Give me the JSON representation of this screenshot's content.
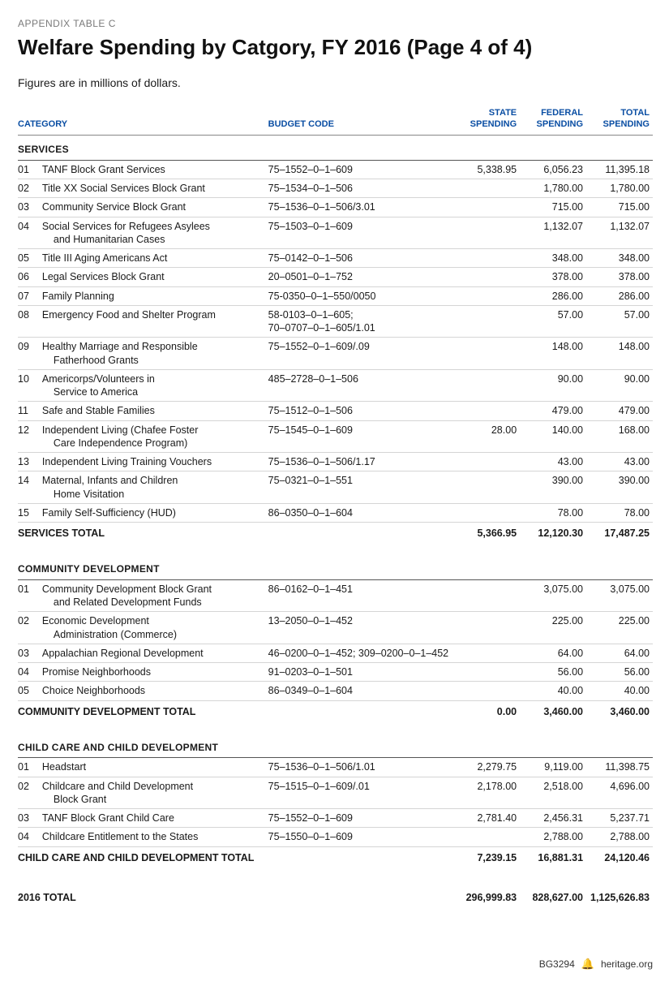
{
  "appendix_label": "APPENDIX TABLE C",
  "title": "Welfare Spending by Catgory, FY 2016 (Page 4 of 4)",
  "subtitle": "Figures are in millions of dollars.",
  "columns": {
    "category": "CATEGORY",
    "budget_code": "BUDGET CODE",
    "state": "STATE SPENDING",
    "federal": "FEDERAL SPENDING",
    "total": "TOTAL SPENDING"
  },
  "sections": [
    {
      "name": "SERVICES",
      "rows": [
        {
          "idx": "01",
          "cat": "TANF Block Grant Services",
          "code": "75–1552–0–1–609",
          "state": "5,338.95",
          "federal": "6,056.23",
          "total": "11,395.18"
        },
        {
          "idx": "02",
          "cat": "Title XX Social Services Block Grant",
          "code": "75–1534–0–1–506",
          "state": "",
          "federal": "1,780.00",
          "total": "1,780.00"
        },
        {
          "idx": "03",
          "cat": "Community Service Block Grant",
          "code": "75–1536–0–1–506/3.01",
          "state": "",
          "federal": "715.00",
          "total": "715.00"
        },
        {
          "idx": "04",
          "cat": "Social Services for Refugees Asylees",
          "cat2": "and Humanitarian Cases",
          "code": "75–1503–0–1–609",
          "state": "",
          "federal": "1,132.07",
          "total": "1,132.07"
        },
        {
          "idx": "05",
          "cat": "Title III Aging Americans Act",
          "code": "75–0142–0–1–506",
          "state": "",
          "federal": "348.00",
          "total": "348.00"
        },
        {
          "idx": "06",
          "cat": "Legal Services Block Grant",
          "code": "20–0501–0–1–752",
          "state": "",
          "federal": "378.00",
          "total": "378.00"
        },
        {
          "idx": "07",
          "cat": "Family Planning",
          "code": "75-0350–0–1–550/0050",
          "state": "",
          "federal": "286.00",
          "total": "286.00"
        },
        {
          "idx": "08",
          "cat": "Emergency Food and Shelter Program",
          "code": "58-0103–0–1–605;",
          "code2": "70–0707–0–1–605/1.01",
          "state": "",
          "federal": "57.00",
          "total": "57.00"
        },
        {
          "idx": "09",
          "cat": "Healthy Marriage and Responsible",
          "cat2": "Fatherhood Grants",
          "code": "75–1552–0–1–609/.09",
          "state": "",
          "federal": "148.00",
          "total": "148.00"
        },
        {
          "idx": "10",
          "cat": "Americorps/Volunteers in",
          "cat2": "Service to America",
          "code": "485–2728–0–1–506",
          "state": "",
          "federal": "90.00",
          "total": "90.00"
        },
        {
          "idx": "11",
          "cat": "Safe and Stable Families",
          "code": "75–1512–0–1–506",
          "state": "",
          "federal": "479.00",
          "total": "479.00"
        },
        {
          "idx": "12",
          "cat": "Independent Living (Chafee Foster",
          "cat2": "Care Independence Program)",
          "code": "75–1545–0–1–609",
          "state": "28.00",
          "federal": "140.00",
          "total": "168.00"
        },
        {
          "idx": "13",
          "cat": "Independent Living Training Vouchers",
          "code": "75–1536–0–1–506/1.17",
          "state": "",
          "federal": "43.00",
          "total": "43.00"
        },
        {
          "idx": "14",
          "cat": "Maternal, Infants and Children",
          "cat2": "Home Visitation",
          "code": "75–0321–0–1–551",
          "state": "",
          "federal": "390.00",
          "total": "390.00"
        },
        {
          "idx": "15",
          "cat": "Family Self-Sufficiency (HUD)",
          "code": "86–0350–0–1–604",
          "state": "",
          "federal": "78.00",
          "total": "78.00"
        }
      ],
      "total_label": "SERVICES TOTAL",
      "total": {
        "state": "5,366.95",
        "federal": "12,120.30",
        "total": "17,487.25"
      }
    },
    {
      "name": "COMMUNITY DEVELOPMENT",
      "rows": [
        {
          "idx": "01",
          "cat": "Community Development Block Grant",
          "cat2": "and Related Development Funds",
          "code": "86–0162–0–1–451",
          "state": "",
          "federal": "3,075.00",
          "total": "3,075.00"
        },
        {
          "idx": "02",
          "cat": "Economic Development",
          "cat2": "Administration (Commerce)",
          "code": "13–2050–0–1–452",
          "state": "",
          "federal": "225.00",
          "total": "225.00"
        },
        {
          "idx": "03",
          "cat": "Appalachian Regional Development",
          "code": "46–0200–0–1–452; 309–0200–0–1–452",
          "state": "",
          "federal": "64.00",
          "total": "64.00"
        },
        {
          "idx": "04",
          "cat": "Promise Neighborhoods",
          "code": "91–0203–0–1–501",
          "state": "",
          "federal": "56.00",
          "total": "56.00"
        },
        {
          "idx": "05",
          "cat": "Choice Neighborhoods",
          "code": "86–0349–0–1–604",
          "state": "",
          "federal": "40.00",
          "total": "40.00"
        }
      ],
      "total_label": "COMMUNITY DEVELOPMENT TOTAL",
      "total": {
        "state": "0.00",
        "federal": "3,460.00",
        "total": "3,460.00"
      }
    },
    {
      "name": "CHILD CARE AND CHILD DEVELOPMENT",
      "rows": [
        {
          "idx": "01",
          "cat": "Headstart",
          "code": "75–1536–0–1–506/1.01",
          "state": "2,279.75",
          "federal": "9,119.00",
          "total": "11,398.75"
        },
        {
          "idx": "02",
          "cat": "Childcare and Child Development",
          "cat2": "Block Grant",
          "code": "75–1515–0–1–609/.01",
          "state": "2,178.00",
          "federal": "2,518.00",
          "total": "4,696.00"
        },
        {
          "idx": "03",
          "cat": "TANF Block Grant Child Care",
          "code": "75–1552–0–1–609",
          "state": "2,781.40",
          "federal": "2,456.31",
          "total": "5,237.71"
        },
        {
          "idx": "04",
          "cat": "Childcare Entitlement to the States",
          "code": "75–1550–0–1–609",
          "state": "",
          "federal": "2,788.00",
          "total": "2,788.00"
        }
      ],
      "total_label": "CHILD CARE AND CHILD DEVELOPMENT TOTAL",
      "total": {
        "state": "7,239.15",
        "federal": "16,881.31",
        "total": "24,120.46"
      }
    }
  ],
  "grand_total": {
    "label": "2016 TOTAL",
    "state": "296,999.83",
    "federal": "828,627.00",
    "total": "1,125,626.83"
  },
  "footer": {
    "doc_id": "BG3294",
    "site": "heritage.org"
  },
  "colors": {
    "header_blue": "#0a4ea3",
    "text": "#1a1a1a",
    "muted": "#7a7a7a",
    "rule": "#d5d5d5",
    "rule_dark": "#555555"
  }
}
